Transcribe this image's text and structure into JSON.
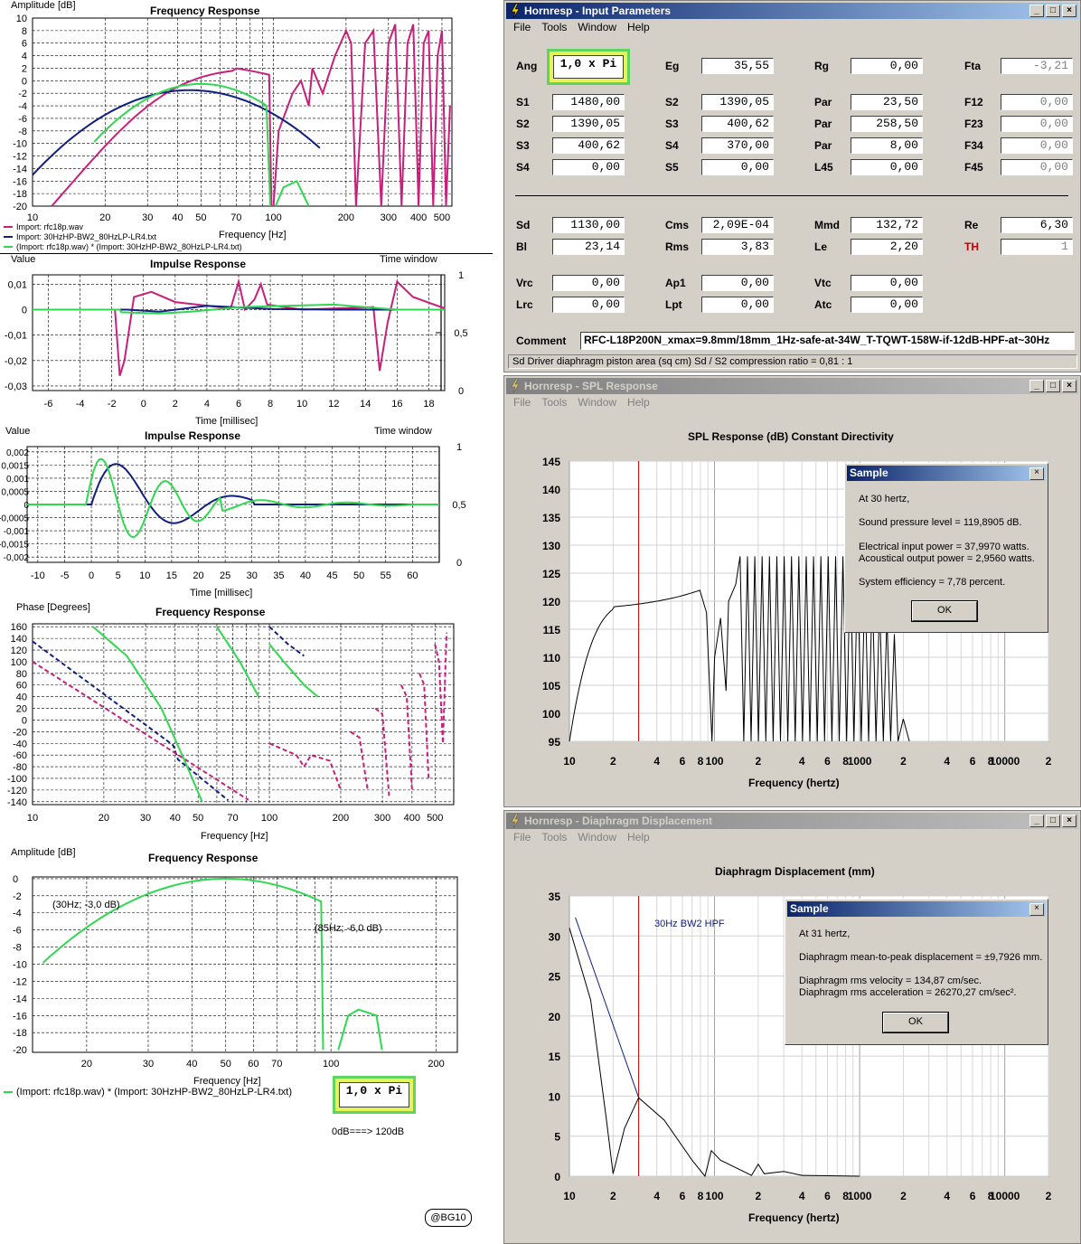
{
  "left": {
    "plot1": {
      "title": "Frequency Response",
      "ylabel": "Amplitude [dB]",
      "xlabel": "Frequency [Hz]",
      "yticks": [
        "10",
        "8",
        "6",
        "4",
        "2",
        "0",
        "-2",
        "-4",
        "-6",
        "-8",
        "-10",
        "-12",
        "-14",
        "-16",
        "-18",
        "-20"
      ],
      "xticks": [
        "10",
        "20",
        "30",
        "40",
        "50",
        "70",
        "100",
        "200",
        "300",
        "400",
        "500"
      ],
      "legend": [
        {
          "text": "Import: rfc18p.wav",
          "color": "#c8207a"
        },
        {
          "text": "Import: 30HzHP-BW2_80HzLP-LR4.txt",
          "color": "#102080"
        },
        {
          "text": "(Import: rfc18p.wav) * (Import: 30HzHP-BW2_80HzLP-LR4.txt)",
          "color": "#30d850"
        }
      ]
    },
    "plot2": {
      "title": "Impulse Response",
      "ylabel": "Value",
      "time_window": "Time window",
      "xlabel": "Time [millisec]",
      "yticks": [
        "0,01",
        "0",
        "-0,01",
        "-0,02",
        "-0,03"
      ],
      "rticks": [
        "1",
        "0,5",
        "0"
      ],
      "xticks": [
        "-6",
        "-4",
        "-2",
        "0",
        "2",
        "4",
        "6",
        "8",
        "10",
        "12",
        "14",
        "16",
        "18"
      ]
    },
    "plot3": {
      "title": "Impulse Response",
      "ylabel": "Value",
      "time_window": "Time window",
      "xlabel": "Time [millisec]",
      "yticks": [
        "0,002",
        "0,0015",
        "0,001",
        "0,0005",
        "0",
        "-0,0005",
        "-0,001",
        "-0,0015",
        "-0,002"
      ],
      "rticks": [
        "1",
        "0,5",
        "0"
      ],
      "xticks": [
        "-10",
        "-5",
        "0",
        "5",
        "10",
        "15",
        "20",
        "25",
        "30",
        "35",
        "40",
        "45",
        "50",
        "55",
        "60"
      ]
    },
    "plot4": {
      "title": "Frequency Response",
      "ylabel": "Phase [Degrees]",
      "xlabel": "Frequency [Hz]",
      "yticks": [
        "160",
        "140",
        "120",
        "100",
        "80",
        "60",
        "40",
        "20",
        "0",
        "-20",
        "-40",
        "-60",
        "-80",
        "-100",
        "-120",
        "-140"
      ],
      "xticks": [
        "10",
        "20",
        "30",
        "40",
        "50",
        "70",
        "100",
        "200",
        "300",
        "400",
        "500"
      ]
    },
    "plot5": {
      "title": "Frequency Response",
      "ylabel": "Amplitude [dB]",
      "xlabel": "Frequency [Hz]",
      "yticks": [
        "0",
        "-2",
        "-4",
        "-6",
        "-8",
        "-10",
        "-12",
        "-14",
        "-16",
        "-18",
        "-20"
      ],
      "xticks": [
        "20",
        "30",
        "40",
        "50",
        "60",
        "70",
        "100",
        "200"
      ],
      "annotation1": "(30Hz; -3,0 dB)",
      "annotation2": "(85Hz; -6,0 dB)",
      "legend": "(Import: rfc18p.wav) * (Import: 30HzHP-BW2_80HzLP-LR4.txt)"
    },
    "badge_value": "1,0 x Pi",
    "badge_note": "0dB===> 120dB",
    "credit": "@BG10"
  },
  "input_window": {
    "title": "Hornresp - Input Parameters",
    "menu": [
      "File",
      "Tools",
      "Window",
      "Help"
    ],
    "fields": [
      {
        "label": "Ang",
        "value": "1,0 x Pi"
      },
      {
        "label": "Eg",
        "value": "35,55"
      },
      {
        "label": "Rg",
        "value": "0,00"
      },
      {
        "label": "Fta",
        "value": "-3,21"
      },
      {
        "label": "S1",
        "value": "1480,00"
      },
      {
        "label": "S2",
        "value": "1390,05"
      },
      {
        "label": "Par",
        "value": "23,50"
      },
      {
        "label": "F12",
        "value": "0,00"
      },
      {
        "label": "S2",
        "value": "1390,05"
      },
      {
        "label": "S3",
        "value": "400,62"
      },
      {
        "label": "Par",
        "value": "258,50"
      },
      {
        "label": "F23",
        "value": "0,00"
      },
      {
        "label": "S3",
        "value": "400,62"
      },
      {
        "label": "S4",
        "value": "370,00"
      },
      {
        "label": "Par",
        "value": "8,00"
      },
      {
        "label": "F34",
        "value": "0,00"
      },
      {
        "label": "S4",
        "value": "0,00"
      },
      {
        "label": "S5",
        "value": "0,00"
      },
      {
        "label": "L45",
        "value": "0,00"
      },
      {
        "label": "F45",
        "value": "0,00"
      },
      {
        "label": "Sd",
        "value": "1130,00"
      },
      {
        "label": "Cms",
        "value": "2,09E-04"
      },
      {
        "label": "Mmd",
        "value": "132,72"
      },
      {
        "label": "Re",
        "value": "6,30"
      },
      {
        "label": "Bl",
        "value": "23,14"
      },
      {
        "label": "Rms",
        "value": "3,83"
      },
      {
        "label": "Le",
        "value": "2,20"
      },
      {
        "label": "TH",
        "value": "1"
      },
      {
        "label": "Vrc",
        "value": "0,00"
      },
      {
        "label": "Ap1",
        "value": "0,00"
      },
      {
        "label": "Vtc",
        "value": "0,00"
      },
      {
        "label": "Lrc",
        "value": "0,00"
      },
      {
        "label": "Lpt",
        "value": "0,00"
      },
      {
        "label": "Atc",
        "value": "0,00"
      }
    ],
    "comment_label": "Comment",
    "comment": "RFC-L18P200N_xmax=9.8mm/18mm_1Hz-safe-at-34W_T-TQWT-158W-if-12dB-HPF-at~30Hz",
    "status": "Sd   Driver diaphragm piston area (sq cm)   Sd / S2 compression ratio = 0,81 : 1"
  },
  "spl_window": {
    "title": "Hornresp - SPL Response",
    "menu": [
      "File",
      "Tools",
      "Window",
      "Help"
    ],
    "chart_title": "SPL Response (dB)   Constant Directivity",
    "xlabel": "Frequency (hertz)",
    "yticks": [
      "145",
      "140",
      "135",
      "130",
      "125",
      "120",
      "115",
      "110",
      "105",
      "100",
      "95"
    ],
    "xticks": [
      "10",
      "2",
      "4",
      "6",
      "8",
      "100",
      "2",
      "4",
      "6",
      "8",
      "1000",
      "2",
      "4",
      "6",
      "8",
      "10000",
      "2"
    ],
    "dialog": {
      "title": "Sample",
      "lines": [
        "At 30 hertz,",
        "Sound pressure level = 119,8905 dB.",
        "Electrical input power = 37,9970 watts.",
        "Acoustical output power = 2,9560 watts.",
        "System efficiency = 7,78 percent."
      ],
      "ok": "OK"
    }
  },
  "disp_window": {
    "title": "Hornresp - Diaphragm Displacement",
    "menu": [
      "File",
      "Tools",
      "Window",
      "Help"
    ],
    "chart_title": "Diaphragm Displacement (mm)",
    "xlabel": "Frequency (hertz)",
    "series_label": "30Hz BW2 HPF",
    "yticks": [
      "35",
      "30",
      "25",
      "20",
      "15",
      "10",
      "5",
      "0"
    ],
    "xticks": [
      "10",
      "2",
      "4",
      "6",
      "8",
      "100",
      "2",
      "4",
      "6",
      "8",
      "1000",
      "2",
      "4",
      "6",
      "8",
      "10000",
      "2"
    ],
    "dialog": {
      "title": "Sample",
      "lines": [
        "At 31 hertz,",
        "Diaphragm mean-to-peak displacement = ±9,7926 mm.",
        "Diaphragm rms velocity = 134,87 cm/sec.",
        "Diaphragm rms acceleration = 26270,27 cm/sec²."
      ],
      "ok": "OK"
    }
  },
  "colors": {
    "magenta": "#c8207a",
    "navy": "#102080",
    "green": "#30d850",
    "accent_red": "#c00000",
    "window_bg": "#d4d0c8"
  }
}
